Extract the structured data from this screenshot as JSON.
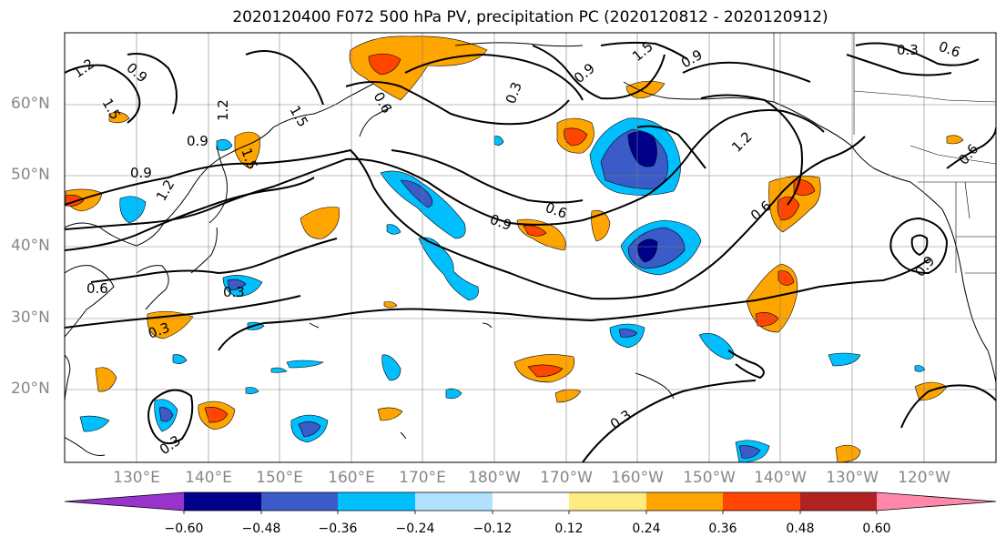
{
  "title": "2020120400 F072 500 hPa PV, precipitation PC (2020120812 - 2020120912)",
  "lat_labels": [
    "60°N",
    "50°N",
    "40°N",
    "30°N",
    "20°N"
  ],
  "lon_labels": [
    "130°E",
    "140°E",
    "150°E",
    "160°E",
    "170°E",
    "180°W",
    "170°W",
    "160°W",
    "150°W",
    "140°W",
    "130°W",
    "120°W"
  ],
  "colorbar": {
    "colors": [
      "#9933cc",
      "#00008b",
      "#3a5bc8",
      "#00bfff",
      "#b0e2ff",
      "#ffffff",
      "#ffeb80",
      "#ffa500",
      "#ff4500",
      "#b22222",
      "#ff88aa"
    ],
    "tick_labels": [
      "−0.60",
      "−0.48",
      "−0.36",
      "−0.24",
      "−0.12",
      "0.12",
      "0.24",
      "0.36",
      "0.48",
      "0.60"
    ]
  },
  "contour_labels": [
    "1.2",
    "0.9",
    "1.5",
    "1.2",
    "1.5",
    "0.9",
    "1.2",
    "0.9",
    "1.5",
    "0.3",
    "0.6",
    "0.9",
    "1.5",
    "0.9",
    "1.2",
    "0.3",
    "0.6",
    "0.6",
    "0.9",
    "0.6",
    "0.6",
    "0.3",
    "0.3",
    "0.3",
    "0.3",
    "0.9",
    "0.6"
  ]
}
